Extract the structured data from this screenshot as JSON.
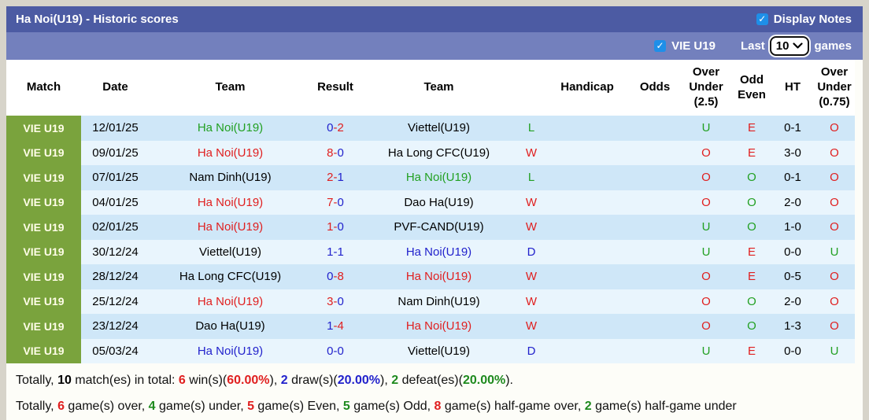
{
  "header": {
    "title": "Ha Noi(U19) - Historic scores",
    "display_notes_label": "Display Notes",
    "display_notes_checked": true
  },
  "filter_bar": {
    "team_label": "VIE U19",
    "team_checked": true,
    "last_label": "Last",
    "games_count": "10",
    "games_label": "games"
  },
  "colors": {
    "title_bar": "#4c5ba3",
    "filter_bar": "#7380bd",
    "badge_green": "#7aa33d",
    "row_odd": "#cfe7f8",
    "row_even": "#e9f5fd",
    "win_red": "#e01f1f",
    "draw_blue": "#2222cc",
    "loss_green": "#22a022",
    "checkbox_blue": "#1e8fe8"
  },
  "table": {
    "columns": [
      "Match",
      "Date",
      "Team",
      "Result",
      "Team",
      "",
      "Handicap",
      "Odds",
      "Over Under (2.5)",
      "Odd Even",
      "HT",
      "Over Under (0.75)"
    ],
    "rows": [
      {
        "match": "VIE U19",
        "date": "12/01/25",
        "home": {
          "name": "Ha Noi(U19)",
          "color": "green"
        },
        "score": {
          "home": "0",
          "away": "2",
          "home_color": "blue",
          "away_color": "red",
          "dash_color": "red"
        },
        "away": {
          "name": "Viettel(U19)",
          "color": "black"
        },
        "outcome": {
          "text": "L",
          "color": "green"
        },
        "handicap": "",
        "odds": "",
        "over_under_25": {
          "text": "U",
          "color": "green"
        },
        "odd_even": {
          "text": "E",
          "color": "red"
        },
        "ht": "0-1",
        "over_under_075": {
          "text": "O",
          "color": "red"
        }
      },
      {
        "match": "VIE U19",
        "date": "09/01/25",
        "home": {
          "name": "Ha Noi(U19)",
          "color": "red"
        },
        "score": {
          "home": "8",
          "away": "0",
          "home_color": "red",
          "away_color": "blue",
          "dash_color": "red"
        },
        "away": {
          "name": "Ha Long CFC(U19)",
          "color": "black"
        },
        "outcome": {
          "text": "W",
          "color": "red"
        },
        "handicap": "",
        "odds": "",
        "over_under_25": {
          "text": "O",
          "color": "red"
        },
        "odd_even": {
          "text": "E",
          "color": "red"
        },
        "ht": "3-0",
        "over_under_075": {
          "text": "O",
          "color": "red"
        }
      },
      {
        "match": "VIE U19",
        "date": "07/01/25",
        "home": {
          "name": "Nam Dinh(U19)",
          "color": "black"
        },
        "score": {
          "home": "2",
          "away": "1",
          "home_color": "red",
          "away_color": "blue",
          "dash_color": "red"
        },
        "away": {
          "name": "Ha Noi(U19)",
          "color": "green"
        },
        "outcome": {
          "text": "L",
          "color": "green"
        },
        "handicap": "",
        "odds": "",
        "over_under_25": {
          "text": "O",
          "color": "red"
        },
        "odd_even": {
          "text": "O",
          "color": "green"
        },
        "ht": "0-1",
        "over_under_075": {
          "text": "O",
          "color": "red"
        }
      },
      {
        "match": "VIE U19",
        "date": "04/01/25",
        "home": {
          "name": "Ha Noi(U19)",
          "color": "red"
        },
        "score": {
          "home": "7",
          "away": "0",
          "home_color": "red",
          "away_color": "blue",
          "dash_color": "red"
        },
        "away": {
          "name": "Dao Ha(U19)",
          "color": "black"
        },
        "outcome": {
          "text": "W",
          "color": "red"
        },
        "handicap": "",
        "odds": "",
        "over_under_25": {
          "text": "O",
          "color": "red"
        },
        "odd_even": {
          "text": "O",
          "color": "green"
        },
        "ht": "2-0",
        "over_under_075": {
          "text": "O",
          "color": "red"
        }
      },
      {
        "match": "VIE U19",
        "date": "02/01/25",
        "home": {
          "name": "Ha Noi(U19)",
          "color": "red"
        },
        "score": {
          "home": "1",
          "away": "0",
          "home_color": "red",
          "away_color": "blue",
          "dash_color": "red"
        },
        "away": {
          "name": "PVF-CAND(U19)",
          "color": "black"
        },
        "outcome": {
          "text": "W",
          "color": "red"
        },
        "handicap": "",
        "odds": "",
        "over_under_25": {
          "text": "U",
          "color": "green"
        },
        "odd_even": {
          "text": "O",
          "color": "green"
        },
        "ht": "1-0",
        "over_under_075": {
          "text": "O",
          "color": "red"
        }
      },
      {
        "match": "VIE U19",
        "date": "30/12/24",
        "home": {
          "name": "Viettel(U19)",
          "color": "black"
        },
        "score": {
          "home": "1",
          "away": "1",
          "home_color": "blue",
          "away_color": "blue",
          "dash_color": "blue"
        },
        "away": {
          "name": "Ha Noi(U19)",
          "color": "blue"
        },
        "outcome": {
          "text": "D",
          "color": "blue"
        },
        "handicap": "",
        "odds": "",
        "over_under_25": {
          "text": "U",
          "color": "green"
        },
        "odd_even": {
          "text": "E",
          "color": "red"
        },
        "ht": "0-0",
        "over_under_075": {
          "text": "U",
          "color": "green"
        }
      },
      {
        "match": "VIE U19",
        "date": "28/12/24",
        "home": {
          "name": "Ha Long CFC(U19)",
          "color": "black"
        },
        "score": {
          "home": "0",
          "away": "8",
          "home_color": "blue",
          "away_color": "red",
          "dash_color": "red"
        },
        "away": {
          "name": "Ha Noi(U19)",
          "color": "red"
        },
        "outcome": {
          "text": "W",
          "color": "red"
        },
        "handicap": "",
        "odds": "",
        "over_under_25": {
          "text": "O",
          "color": "red"
        },
        "odd_even": {
          "text": "E",
          "color": "red"
        },
        "ht": "0-5",
        "over_under_075": {
          "text": "O",
          "color": "red"
        }
      },
      {
        "match": "VIE U19",
        "date": "25/12/24",
        "home": {
          "name": "Ha Noi(U19)",
          "color": "red"
        },
        "score": {
          "home": "3",
          "away": "0",
          "home_color": "red",
          "away_color": "blue",
          "dash_color": "red"
        },
        "away": {
          "name": "Nam Dinh(U19)",
          "color": "black"
        },
        "outcome": {
          "text": "W",
          "color": "red"
        },
        "handicap": "",
        "odds": "",
        "over_under_25": {
          "text": "O",
          "color": "red"
        },
        "odd_even": {
          "text": "O",
          "color": "green"
        },
        "ht": "2-0",
        "over_under_075": {
          "text": "O",
          "color": "red"
        }
      },
      {
        "match": "VIE U19",
        "date": "23/12/24",
        "home": {
          "name": "Dao Ha(U19)",
          "color": "black"
        },
        "score": {
          "home": "1",
          "away": "4",
          "home_color": "blue",
          "away_color": "red",
          "dash_color": "red"
        },
        "away": {
          "name": "Ha Noi(U19)",
          "color": "red"
        },
        "outcome": {
          "text": "W",
          "color": "red"
        },
        "handicap": "",
        "odds": "",
        "over_under_25": {
          "text": "O",
          "color": "red"
        },
        "odd_even": {
          "text": "O",
          "color": "green"
        },
        "ht": "1-3",
        "over_under_075": {
          "text": "O",
          "color": "red"
        }
      },
      {
        "match": "VIE U19",
        "date": "05/03/24",
        "home": {
          "name": "Ha Noi(U19)",
          "color": "blue"
        },
        "score": {
          "home": "0",
          "away": "0",
          "home_color": "blue",
          "away_color": "blue",
          "dash_color": "blue"
        },
        "away": {
          "name": "Viettel(U19)",
          "color": "black"
        },
        "outcome": {
          "text": "D",
          "color": "blue"
        },
        "handicap": "",
        "odds": "",
        "over_under_25": {
          "text": "U",
          "color": "green"
        },
        "odd_even": {
          "text": "E",
          "color": "red"
        },
        "ht": "0-0",
        "over_under_075": {
          "text": "U",
          "color": "green"
        }
      }
    ]
  },
  "summary": {
    "line1": [
      {
        "text": "Totally, ",
        "style": "plain"
      },
      {
        "text": "10",
        "style": "bold-black"
      },
      {
        "text": " match(es) in total: ",
        "style": "plain"
      },
      {
        "text": "6",
        "style": "bold-red"
      },
      {
        "text": " win(s)(",
        "style": "plain"
      },
      {
        "text": "60.00%",
        "style": "bold-red"
      },
      {
        "text": "), ",
        "style": "plain"
      },
      {
        "text": "2",
        "style": "bold-blue"
      },
      {
        "text": " draw(s)(",
        "style": "plain"
      },
      {
        "text": "20.00%",
        "style": "bold-blue"
      },
      {
        "text": "), ",
        "style": "plain"
      },
      {
        "text": "2",
        "style": "bold-green"
      },
      {
        "text": " defeat(es)(",
        "style": "plain"
      },
      {
        "text": "20.00%",
        "style": "bold-green"
      },
      {
        "text": ").",
        "style": "plain"
      }
    ],
    "line2": [
      {
        "text": "Totally, ",
        "style": "plain"
      },
      {
        "text": "6",
        "style": "bold-red"
      },
      {
        "text": " game(s) over, ",
        "style": "plain"
      },
      {
        "text": "4",
        "style": "bold-green"
      },
      {
        "text": " game(s) under, ",
        "style": "plain"
      },
      {
        "text": "5",
        "style": "bold-red"
      },
      {
        "text": " game(s) Even, ",
        "style": "plain"
      },
      {
        "text": "5",
        "style": "bold-green"
      },
      {
        "text": " game(s) Odd, ",
        "style": "plain"
      },
      {
        "text": "8",
        "style": "bold-red"
      },
      {
        "text": " game(s) half-game over, ",
        "style": "plain"
      },
      {
        "text": "2",
        "style": "bold-green"
      },
      {
        "text": " game(s) half-game under",
        "style": "plain"
      }
    ]
  }
}
